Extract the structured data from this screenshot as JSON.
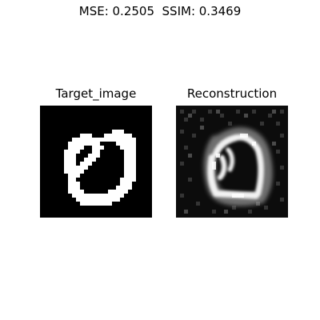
{
  "figure": {
    "suptitle": "MSE: 0.2505  SSIM: 0.3469"
  },
  "panels": [
    {
      "title": "Target_image"
    },
    {
      "title": "Reconstruction"
    }
  ]
}
